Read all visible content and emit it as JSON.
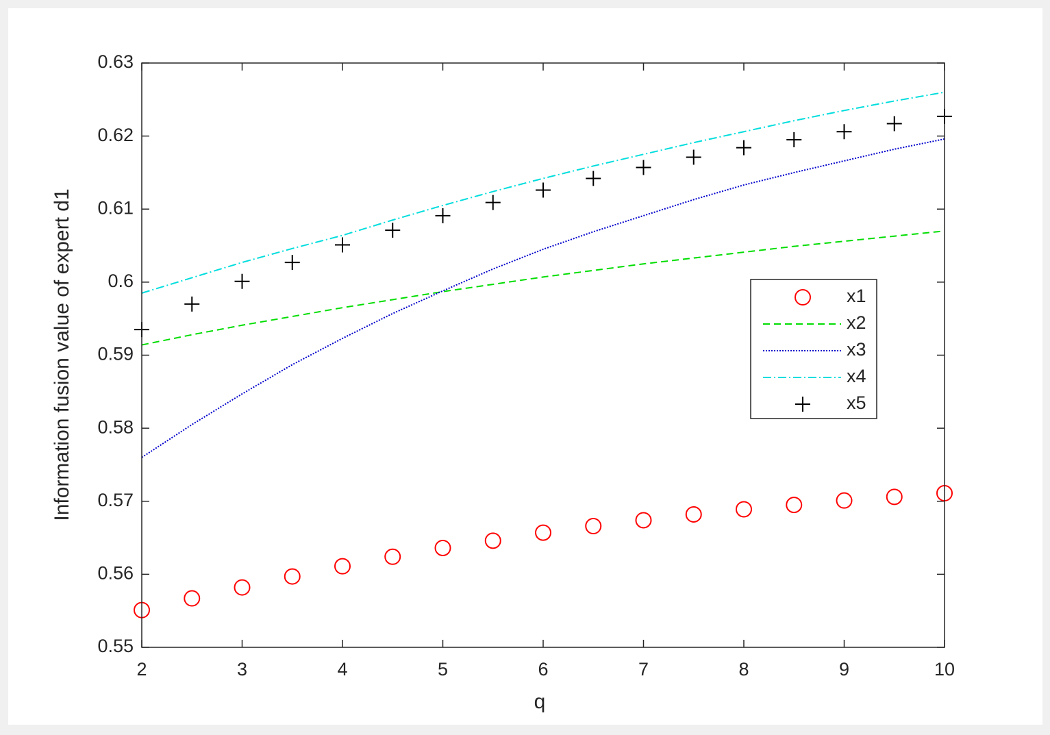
{
  "chart_data": {
    "type": "line",
    "xlabel": "q",
    "ylabel": "Information fusion value of expert d1",
    "x": [
      2,
      2.5,
      3,
      3.5,
      4,
      4.5,
      5,
      5.5,
      6,
      6.5,
      7,
      7.5,
      8,
      8.5,
      9,
      9.5,
      10
    ],
    "series": [
      {
        "name": "x1",
        "color": "#ff0000",
        "marker": "o",
        "values": [
          0.5551,
          0.5567,
          0.5582,
          0.5597,
          0.5611,
          0.5624,
          0.5636,
          0.5646,
          0.5657,
          0.5666,
          0.5674,
          0.5682,
          0.5689,
          0.5695,
          0.5701,
          0.5706,
          0.5711
        ]
      },
      {
        "name": "x2",
        "color": "#00dd00",
        "linestyle": "dashed",
        "values": [
          0.5914,
          0.5928,
          0.5941,
          0.5953,
          0.5965,
          0.5976,
          0.5987,
          0.5997,
          0.6007,
          0.6016,
          0.6025,
          0.6033,
          0.6041,
          0.6049,
          0.6056,
          0.6063,
          0.607
        ]
      },
      {
        "name": "x3",
        "color": "#0000cc",
        "linestyle": "dotted",
        "values": [
          0.576,
          0.5805,
          0.5847,
          0.5887,
          0.5923,
          0.5957,
          0.5988,
          0.6018,
          0.6045,
          0.6069,
          0.6091,
          0.6113,
          0.6133,
          0.615,
          0.6166,
          0.6182,
          0.6196
        ]
      },
      {
        "name": "x4",
        "color": "#00dddd",
        "linestyle": "dashdot",
        "values": [
          0.5985,
          0.6006,
          0.6027,
          0.6046,
          0.6064,
          0.6085,
          0.6105,
          0.6124,
          0.6142,
          0.6159,
          0.6175,
          0.6191,
          0.6206,
          0.6221,
          0.6235,
          0.6248,
          0.626
        ]
      },
      {
        "name": "x5",
        "color": "#000000",
        "marker": "+",
        "values": [
          0.5935,
          0.597,
          0.6001,
          0.6027,
          0.6051,
          0.6071,
          0.6091,
          0.6109,
          0.6126,
          0.6142,
          0.6157,
          0.6171,
          0.6184,
          0.6195,
          0.6206,
          0.6217,
          0.6227
        ]
      }
    ],
    "xlim": [
      2,
      10
    ],
    "xticks": [
      2,
      3,
      4,
      5,
      6,
      7,
      8,
      9,
      10
    ],
    "ylim": [
      0.55,
      0.63
    ],
    "yticks": [
      0.55,
      0.56,
      0.57,
      0.58,
      0.59,
      0.6,
      0.61,
      0.62,
      0.63
    ],
    "grid": false,
    "legend": "east"
  }
}
